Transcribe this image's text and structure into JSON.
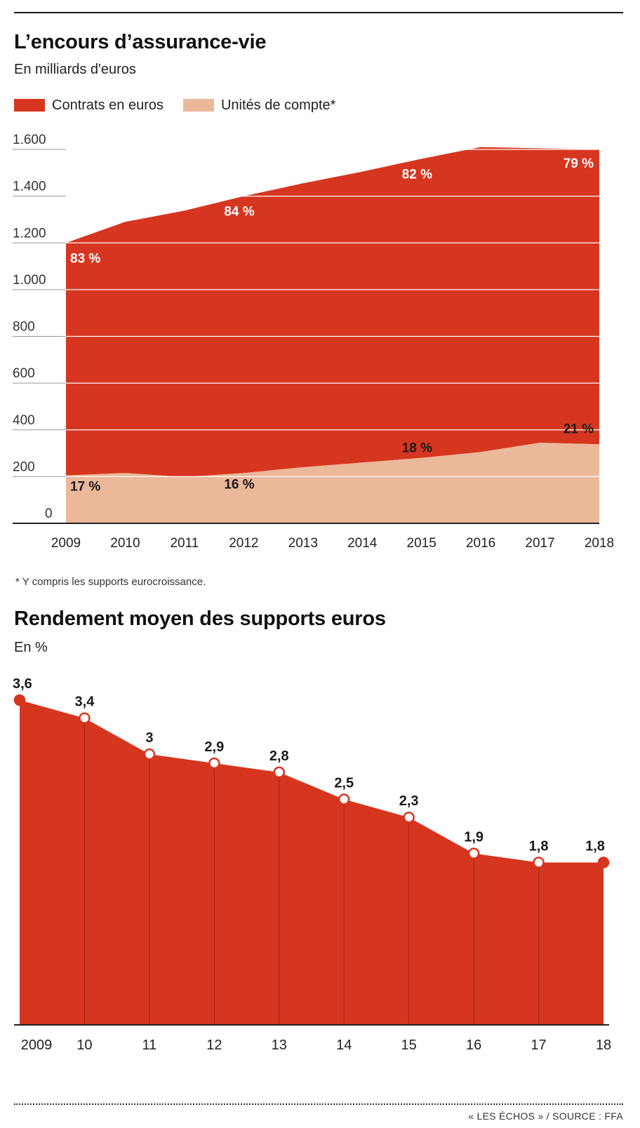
{
  "colors": {
    "euros": "#d6361f",
    "uc": "#ebb89a",
    "grid": "#ffffff",
    "axis": "#222222"
  },
  "chart1": {
    "title": "L’encours d’assurance-vie",
    "subtitle": "En milliards d'euros",
    "legend": [
      {
        "label": "Contrats en euros",
        "color": "#d6361f"
      },
      {
        "label": "Unités de compte*",
        "color": "#ebb89a"
      }
    ],
    "footnote": "* Y compris les supports eurocroissance."
  },
  "chart2": {
    "title": "Rendement moyen des supports euros",
    "subtitle": "En %"
  },
  "source": "« LES ÉCHOS » / SOURCE : FFA",
  "chart_data": [
    {
      "type": "area",
      "title": "L’encours d’assurance-vie",
      "subtitle": "En milliards d'euros",
      "x": [
        "2009",
        "2010",
        "2011",
        "2012",
        "2013",
        "2014",
        "2015",
        "2016",
        "2017",
        "2018"
      ],
      "ylim": [
        0,
        1600
      ],
      "yticks": [
        0,
        200,
        400,
        600,
        800,
        1000,
        1200,
        1400,
        1600
      ],
      "ytick_labels": [
        "0",
        "200",
        "400",
        "600",
        "800",
        "1.000",
        "1.200",
        "1.400",
        "1.600"
      ],
      "stacked": true,
      "series": [
        {
          "name": "Unités de compte*",
          "values": [
            205,
            215,
            198,
            215,
            240,
            260,
            280,
            305,
            345,
            338
          ]
        },
        {
          "name": "Contrats en euros",
          "values": [
            995,
            1075,
            1140,
            1185,
            1215,
            1245,
            1280,
            1305,
            1260,
            1262
          ]
        }
      ],
      "total": [
        1200,
        1290,
        1338,
        1400,
        1455,
        1505,
        1560,
        1610,
        1605,
        1600
      ],
      "annotations": [
        {
          "x": "2009",
          "label": "83 %",
          "series": "Contrats en euros"
        },
        {
          "x": "2012",
          "label": "84 %",
          "series": "Contrats en euros"
        },
        {
          "x": "2015",
          "label": "82 %",
          "series": "Contrats en euros"
        },
        {
          "x": "2018",
          "label": "79 %",
          "series": "Contrats en euros"
        },
        {
          "x": "2009",
          "label": "17 %",
          "series": "Unités de compte*"
        },
        {
          "x": "2012",
          "label": "16 %",
          "series": "Unités de compte*"
        },
        {
          "x": "2015",
          "label": "18 %",
          "series": "Unités de compte*"
        },
        {
          "x": "2018",
          "label": "21 %",
          "series": "Unités de compte*"
        }
      ],
      "legend_position": "top-left",
      "grid": true
    },
    {
      "type": "area",
      "title": "Rendement moyen des supports euros",
      "subtitle": "En %",
      "x": [
        "2009",
        "10",
        "11",
        "12",
        "13",
        "14",
        "15",
        "16",
        "17",
        "18"
      ],
      "values": [
        3.6,
        3.4,
        3.0,
        2.9,
        2.8,
        2.5,
        2.3,
        1.9,
        1.8,
        1.8
      ],
      "value_labels": [
        "3,6",
        "3,4",
        "3",
        "2,9",
        "2,8",
        "2,5",
        "2,3",
        "1,9",
        "1,8",
        "1,8"
      ],
      "ylim": [
        0,
        3.6
      ],
      "markers": true,
      "grid": false
    }
  ]
}
